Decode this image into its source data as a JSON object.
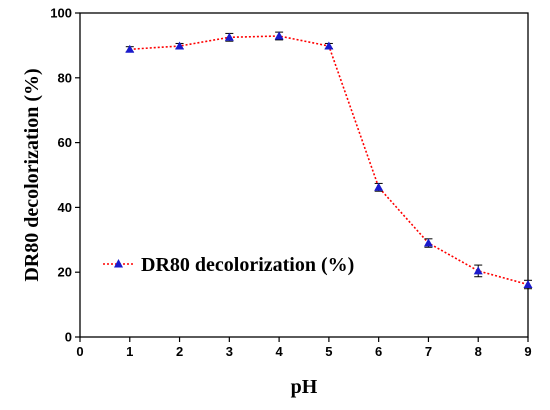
{
  "chart_data": {
    "type": "line",
    "xlabel": "pH",
    "ylabel": "DR80 decolorization (%)",
    "xlim": [
      0,
      9
    ],
    "ylim": [
      0,
      100
    ],
    "x_ticks": [
      0,
      1,
      2,
      3,
      4,
      5,
      6,
      7,
      8,
      9
    ],
    "y_ticks": [
      0,
      20,
      40,
      60,
      80,
      100
    ],
    "grid": false,
    "legend_position": "center-left",
    "series": [
      {
        "name": "DR80 decolorization (%)",
        "color": "#ff0000",
        "marker_color": "#1a1acc",
        "marker": "triangle",
        "line_style": "dotted",
        "x": [
          1,
          2,
          3,
          4,
          5,
          6,
          7,
          8,
          9
        ],
        "y": [
          88.8,
          89.8,
          92.5,
          92.9,
          89.8,
          46.2,
          29.0,
          20.4,
          16.2
        ],
        "error": [
          0.8,
          0.8,
          1.2,
          1.2,
          0.8,
          1.2,
          1.3,
          1.8,
          1.3
        ]
      }
    ]
  }
}
